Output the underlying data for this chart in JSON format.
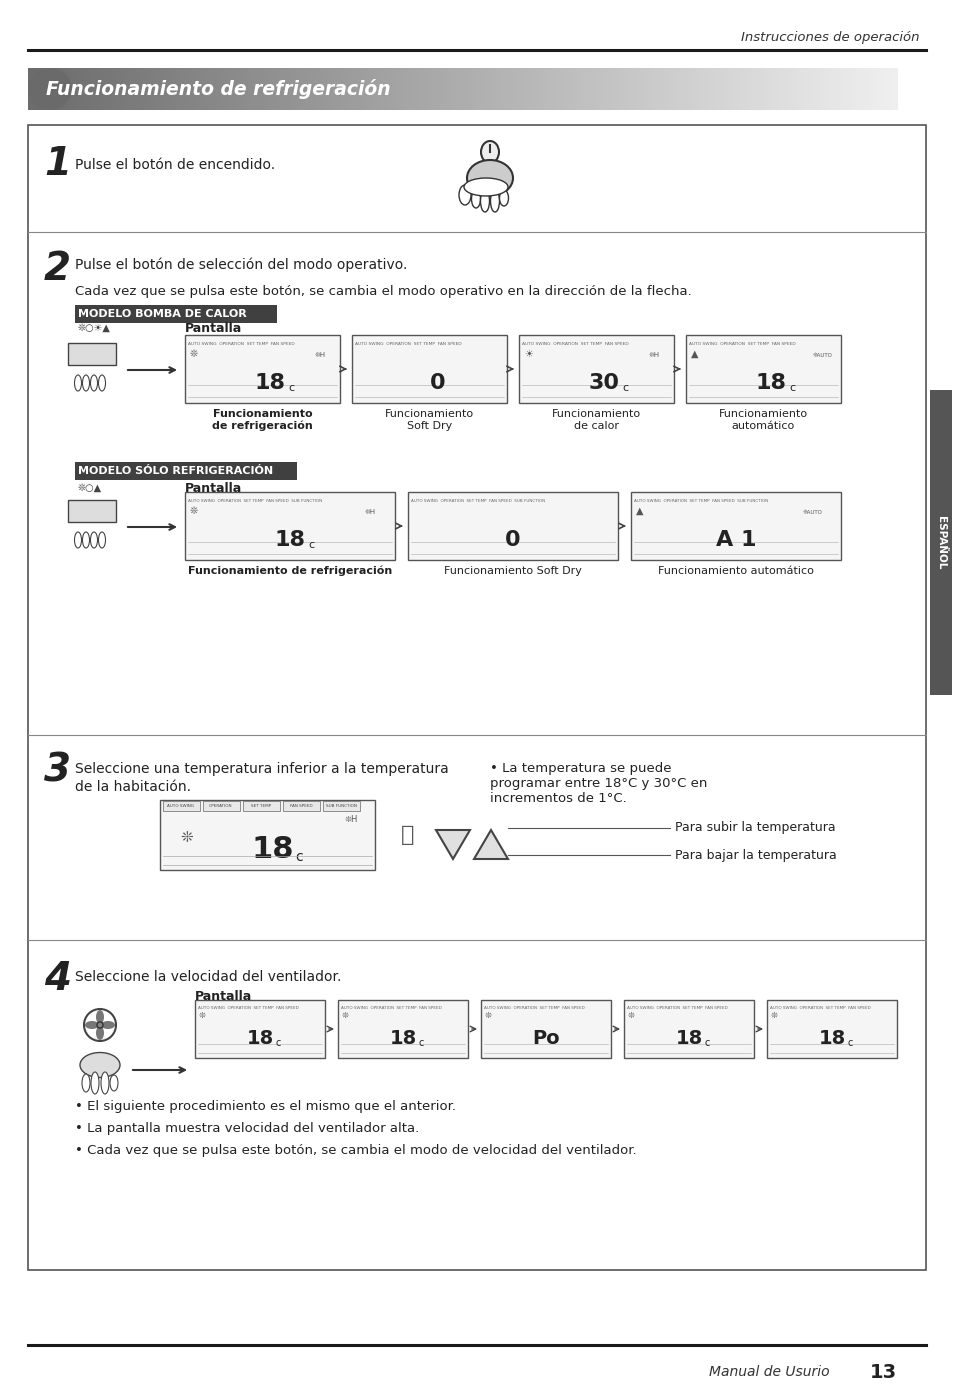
{
  "header_text": "Instrucciones de operación",
  "title": "Funcionamiento de refrigeración",
  "footer_text": "Manual de Usurio",
  "footer_page": "13",
  "bg_color": "#ffffff",
  "sidebar_text": "ESPAÑOL",
  "step1_num": "1",
  "step1_text": "Pulse el botón de encendido.",
  "step2_num": "2",
  "step2_text": "Pulse el botón de selección del modo operativo.",
  "step2_sub": "Cada vez que se pulsa este botón, se cambia el modo operativo en la dirección de la flecha.",
  "modelo_calor": "MODELO BOMBA DE CALOR",
  "modelo_frio": "MODELO SÓLO REFRIGERACIÓN",
  "pantalla_label": "Pantalla",
  "func_refrig": "Funcionamiento\nde refrigeración",
  "func_soft": "Funcionamiento\nSoft Dry",
  "func_calor": "Funcionamiento\nde calor",
  "func_auto": "Funcionamiento\nautomático",
  "func_refrig2": "Funcionamiento de refrigeración",
  "func_soft2": "Funcionamiento Soft Dry",
  "func_auto2": "Funcionamiento automático",
  "step3_num": "3",
  "step3_text1": "Seleccione una temperatura inferior a la temperatura",
  "step3_text2": "de la habitación.",
  "step3_bullet": "• La temperatura se puede\nprogramar entre 18°C y 30°C en\nincrementos de 1°C.",
  "step3_up": "Para subir la temperatura",
  "step3_down": "Para bajar la temperatura",
  "step4_num": "4",
  "step4_text": "Seleccione la velocidad del ventilador.",
  "step4_bullet1": "• El siguiente procedimiento es el mismo que el anterior.",
  "step4_bullet2": "• La pantalla muestra velocidad del ventilador alta.",
  "step4_bullet3": "• Cada vez que se pulsa este botón, se cambia el modo de velocidad del ventilador.",
  "calor_screens_temp": [
    "18",
    "0",
    "30",
    "18"
  ],
  "frio_screens_temp": [
    "18",
    "0",
    "A 1"
  ],
  "s3_temp": "18",
  "s4_temps": [
    "18",
    "18",
    "Po",
    "18",
    "18"
  ]
}
